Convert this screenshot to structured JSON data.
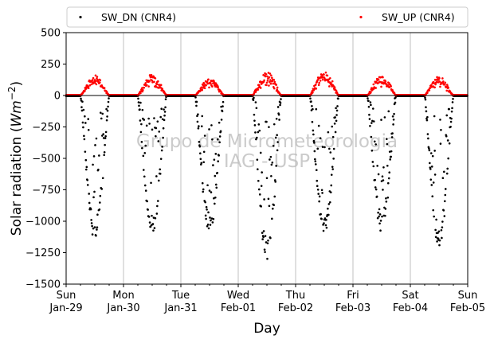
{
  "chart_data": {
    "type": "scatter",
    "title": "",
    "xlabel": "Day",
    "ylabel_prefix": "Solar radiation (",
    "ylabel_unit": "Wm",
    "ylabel_exp": "−2",
    "ylabel_suffix": ")",
    "ylim": [
      -1500,
      500
    ],
    "xlim": [
      0,
      7
    ],
    "x_unit": "days since Sun Jan-29 00:00",
    "yticks": [
      500,
      250,
      0,
      -250,
      -500,
      -750,
      -1000,
      -1250,
      -1500
    ],
    "ytick_labels": [
      "500",
      "250",
      "0",
      "−250",
      "−500",
      "−750",
      "−1000",
      "−1250",
      "−1500"
    ],
    "xticks": [
      {
        "day": "Sun",
        "date": "Jan-29"
      },
      {
        "day": "Mon",
        "date": "Jan-30"
      },
      {
        "day": "Tue",
        "date": "Jan-31"
      },
      {
        "day": "Wed",
        "date": "Feb-01"
      },
      {
        "day": "Thu",
        "date": "Feb-02"
      },
      {
        "day": "Fri",
        "date": "Feb-03"
      },
      {
        "day": "Sat",
        "date": "Feb-04"
      },
      {
        "day": "Sun",
        "date": "Feb-05"
      }
    ],
    "grid": "vertical",
    "legend_placement": "top, outside axes",
    "watermark": [
      "Grupo de Micrometeorologia",
      "IAG - USP"
    ],
    "series": [
      {
        "name": "SW_DN (CNR4)",
        "color": "#000000",
        "marker": "dot",
        "daily_peak_magnitude": [
          -1150,
          -1120,
          -1100,
          -1330,
          -1110,
          -1100,
          -1210
        ],
        "daily_window_hours": [
          6,
          18
        ]
      },
      {
        "name": "SW_UP (CNR4)",
        "color": "#ff0000",
        "marker": "dot",
        "daily_peak": [
          160,
          170,
          135,
          190,
          200,
          160,
          150
        ],
        "daily_window_hours": [
          6,
          18
        ]
      }
    ]
  }
}
